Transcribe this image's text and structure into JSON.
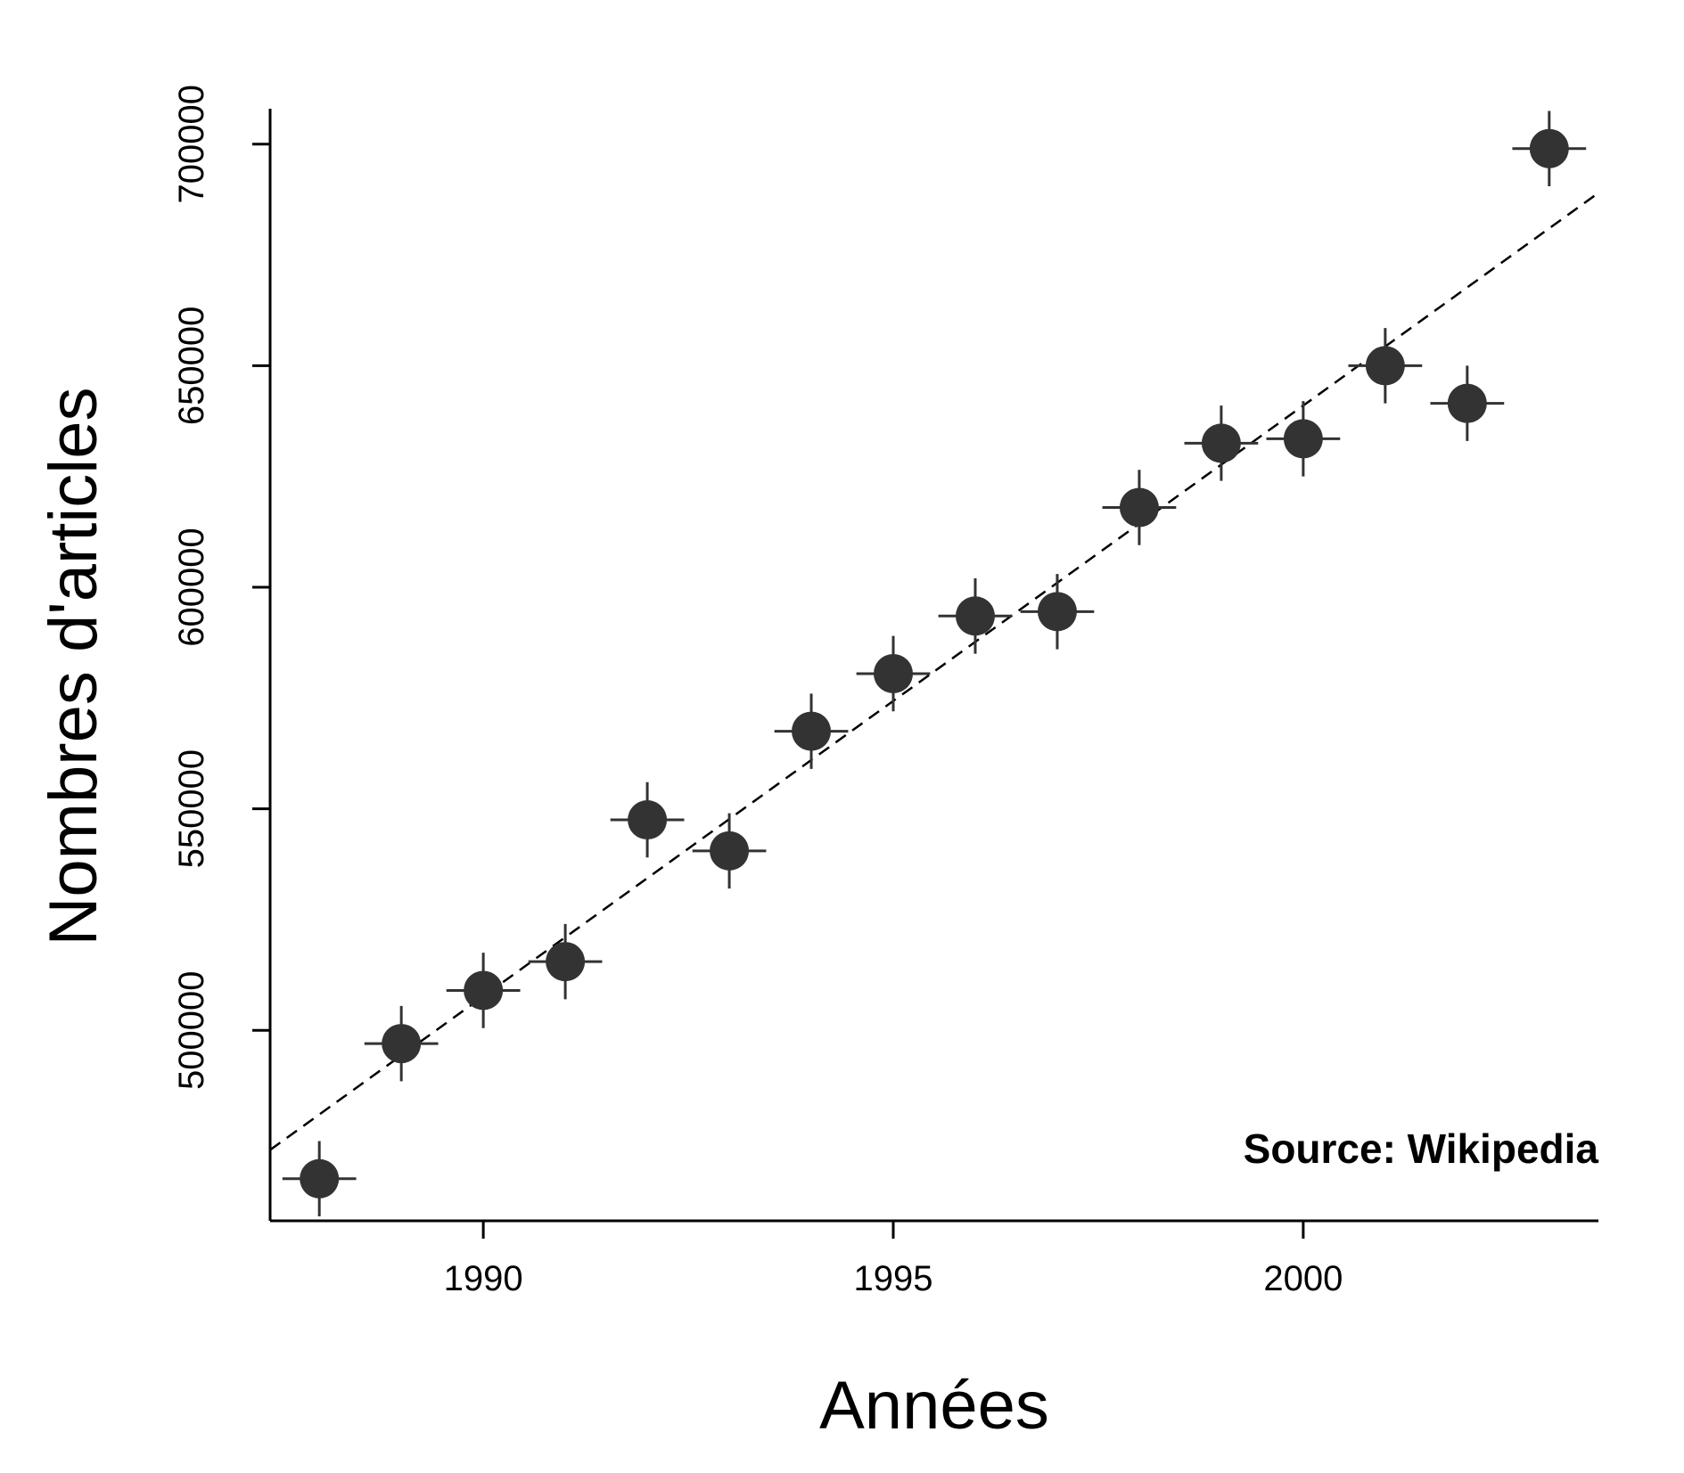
{
  "chart_data": {
    "type": "scatter",
    "xlabel": "Années",
    "ylabel": "Nombres d'articles",
    "annotation": "Source: Wikipedia",
    "xlim": [
      1987.4,
      2003.6
    ],
    "ylim": [
      457000,
      708000
    ],
    "x_ticks": [
      1990,
      1995,
      2000
    ],
    "y_ticks": [
      500000,
      550000,
      600000,
      650000,
      700000
    ],
    "x_tick_labels": [
      "1990",
      "1995",
      "2000"
    ],
    "y_tick_labels": [
      "500000",
      "550000",
      "600000",
      "650000",
      "700000"
    ],
    "x": [
      1988,
      1989,
      1990,
      1991,
      1992,
      1993,
      1994,
      1995,
      1996,
      1997,
      1998,
      1999,
      2000,
      2001,
      2002,
      2003
    ],
    "y": [
      466500,
      497000,
      509000,
      515500,
      547500,
      540500,
      567500,
      580500,
      593500,
      594500,
      618000,
      632500,
      633500,
      650000,
      641500,
      699000
    ],
    "x_err": 0.45,
    "y_err": 8500,
    "trend_line": {
      "style": "dashed",
      "x": [
        1987.4,
        2003.6
      ],
      "y": [
        473000,
        689000
      ]
    },
    "grid": false,
    "colors": {
      "point": "#333333",
      "axis": "#000000",
      "trend": "#000000"
    }
  }
}
